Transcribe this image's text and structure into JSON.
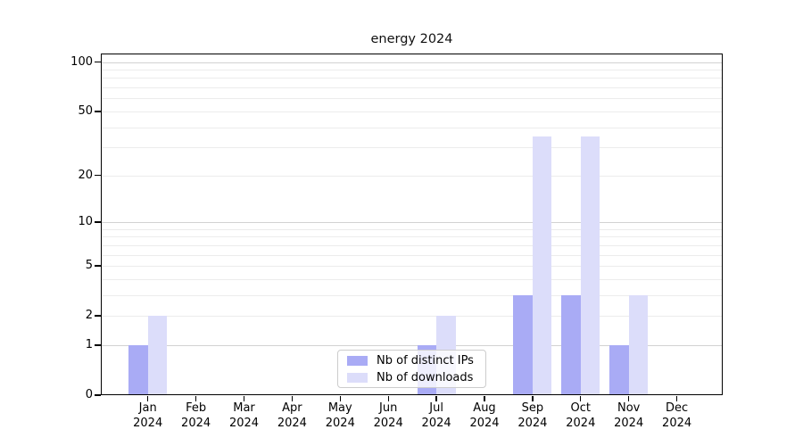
{
  "chart_data": {
    "type": "bar",
    "title": "energy 2024",
    "year_label": "2024",
    "categories": [
      "Jan",
      "Feb",
      "Mar",
      "Apr",
      "May",
      "Jun",
      "Jul",
      "Aug",
      "Sep",
      "Oct",
      "Nov",
      "Dec"
    ],
    "series": [
      {
        "name": "Nb of distinct IPs",
        "color": "#a9abf5",
        "values": [
          1,
          0,
          0,
          0,
          0,
          0,
          1,
          0,
          3,
          3,
          1,
          0
        ]
      },
      {
        "name": "Nb of downloads",
        "color": "#dcddfa",
        "values": [
          2,
          0,
          0,
          0,
          0,
          0,
          2,
          0,
          35,
          35,
          3,
          0
        ]
      }
    ],
    "xlabel": "",
    "ylabel": "",
    "y_axis": {
      "scale": "log1p",
      "tick_values": [
        0,
        1,
        2,
        5,
        10,
        20,
        50,
        100
      ],
      "tick_labels": [
        "0",
        "1",
        "2",
        "5",
        "10",
        "20",
        "50",
        "100"
      ],
      "major_gridlines": [
        1,
        10,
        100
      ],
      "minor_gridlines": [
        2,
        3,
        4,
        5,
        6,
        7,
        8,
        9,
        20,
        30,
        40,
        50,
        60,
        70,
        80,
        90
      ],
      "ylim": [
        0,
        112
      ]
    },
    "grid": "horizontal-only",
    "legend_position": "lower-center-inside"
  },
  "colors": {
    "major_grid": "#d2d2d2",
    "minor_grid": "#ececec",
    "spine": "#000000",
    "legend_border": "#cccccc",
    "background": "#ffffff"
  }
}
